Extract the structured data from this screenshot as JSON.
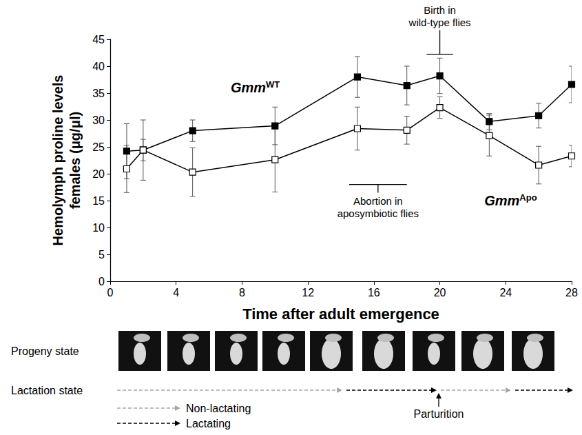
{
  "chart_data": {
    "type": "line",
    "y_label": [
      "Hemolymph proline levels",
      "females (μg/μl)"
    ],
    "x_label": "Time after adult emergence",
    "xlim": [
      0,
      28
    ],
    "xticks": [
      0,
      4,
      8,
      12,
      16,
      20,
      24,
      28
    ],
    "ylim": [
      0,
      45
    ],
    "yticks": [
      0,
      5,
      10,
      15,
      20,
      25,
      30,
      35,
      40,
      45
    ],
    "grid": false,
    "x": [
      1,
      2,
      5,
      10,
      15,
      18,
      20,
      23,
      26,
      28
    ],
    "series": [
      {
        "name": "Gmm",
        "name_superscript": "WT",
        "color": "#000000",
        "marker": "filled square",
        "values": [
          24.2,
          24.4,
          28.0,
          28.9,
          38.0,
          36.4,
          38.2,
          29.7,
          30.8,
          36.6
        ],
        "errors": [
          5.1,
          5.6,
          2.0,
          3.5,
          3.8,
          3.6,
          3.3,
          1.5,
          2.3,
          3.4
        ]
      },
      {
        "name": "Gmm",
        "name_superscript": "Apo",
        "color": "#000000",
        "marker": "open square",
        "values": [
          20.9,
          24.4,
          20.3,
          22.6,
          28.4,
          28.1,
          32.3,
          27.1,
          21.6,
          23.3
        ],
        "errors": [
          4.4,
          2.0,
          4.5,
          6.0,
          4.0,
          2.6,
          2.0,
          3.8,
          3.5,
          2.0
        ]
      }
    ],
    "annotations": [
      {
        "text": [
          "Birth in",
          "wild-type flies"
        ],
        "period": [
          19.2,
          20.8
        ]
      },
      {
        "text": [
          "Abortion in",
          "aposymbiotic flies"
        ],
        "period": [
          14.5,
          18
        ]
      }
    ]
  },
  "lower_panel": {
    "rows": [
      "Progeny state",
      "Lactation state"
    ],
    "legend": [
      {
        "label": "Non-lactating",
        "color": "#a6a6a6"
      },
      {
        "label": "Lactating",
        "color": "#000000"
      }
    ],
    "lactation_sequence": [
      "Non-lactating",
      "Lactating",
      "Non-lactating",
      "Lactating"
    ],
    "event": "Parturition"
  }
}
